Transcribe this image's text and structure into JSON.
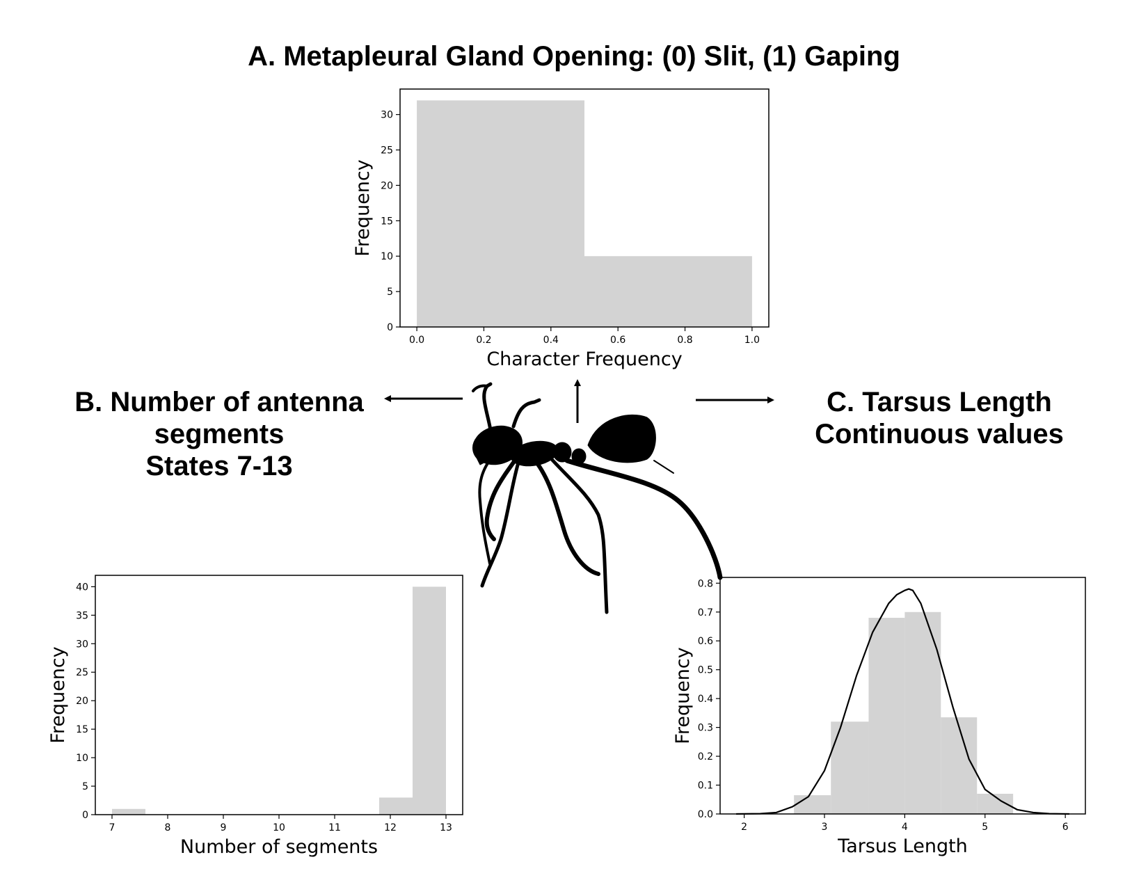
{
  "figure": {
    "panel_a_title": "A. Metapleural Gland Opening: (0) Slit, (1) Gaping",
    "panel_b_title": [
      "B. Number of antenna",
      "segments",
      "States 7-13"
    ],
    "panel_c_title": [
      "C. Tarsus Length",
      "Continuous values"
    ]
  },
  "colors": {
    "bar": "#d3d3d3",
    "axis": "#000000",
    "curve": "#000000",
    "silhouette": "#000000"
  },
  "icons": {
    "center": "ant-silhouette-icon"
  },
  "chart_data": [
    {
      "id": "A",
      "type": "bar",
      "xlabel": "Character Frequency",
      "ylabel": "Frequency",
      "xlim": [
        -0.05,
        1.05
      ],
      "ylim": [
        0,
        33.6
      ],
      "xticks": [
        0.0,
        0.2,
        0.4,
        0.6,
        0.8,
        1.0
      ],
      "xtick_labels": [
        "0.0",
        "0.2",
        "0.4",
        "0.6",
        "0.8",
        "1.0"
      ],
      "yticks": [
        0,
        5,
        10,
        15,
        20,
        25,
        30
      ],
      "bins": [
        {
          "x0": 0.0,
          "x1": 0.5,
          "value": 32
        },
        {
          "x0": 0.5,
          "x1": 1.0,
          "value": 10
        }
      ]
    },
    {
      "id": "B",
      "type": "bar",
      "xlabel": "Number of segments",
      "ylabel": "Frequency",
      "xlim": [
        6.7,
        13.3
      ],
      "ylim": [
        0,
        42
      ],
      "xticks": [
        7,
        8,
        9,
        10,
        11,
        12,
        13
      ],
      "xtick_labels": [
        "7",
        "8",
        "9",
        "10",
        "11",
        "12",
        "13"
      ],
      "yticks": [
        0,
        5,
        10,
        15,
        20,
        25,
        30,
        35,
        40
      ],
      "bins": [
        {
          "x0": 7.0,
          "x1": 7.6,
          "value": 1
        },
        {
          "x0": 11.8,
          "x1": 12.4,
          "value": 3
        },
        {
          "x0": 12.4,
          "x1": 13.0,
          "value": 40
        }
      ]
    },
    {
      "id": "C",
      "type": "bar",
      "xlabel": "Tarsus Length",
      "ylabel": "Frequency",
      "xlim": [
        1.7,
        6.25
      ],
      "ylim": [
        0,
        0.82
      ],
      "xticks": [
        2,
        3,
        4,
        5,
        6
      ],
      "xtick_labels": [
        "2",
        "3",
        "4",
        "5",
        "6"
      ],
      "yticks": [
        0.0,
        0.1,
        0.2,
        0.3,
        0.4,
        0.5,
        0.6,
        0.7,
        0.8
      ],
      "ytick_labels": [
        "0.0",
        "0.1",
        "0.2",
        "0.3",
        "0.4",
        "0.5",
        "0.6",
        "0.7",
        "0.8"
      ],
      "bins": [
        {
          "x0": 2.62,
          "x1": 3.08,
          "value": 0.065
        },
        {
          "x0": 3.08,
          "x1": 3.55,
          "value": 0.32
        },
        {
          "x0": 3.55,
          "x1": 4.0,
          "value": 0.68
        },
        {
          "x0": 4.0,
          "x1": 4.45,
          "value": 0.7
        },
        {
          "x0": 4.45,
          "x1": 4.9,
          "value": 0.335
        },
        {
          "x0": 4.9,
          "x1": 5.35,
          "value": 0.07
        }
      ],
      "density_curve": {
        "x": [
          1.9,
          2.2,
          2.4,
          2.6,
          2.8,
          3.0,
          3.2,
          3.4,
          3.6,
          3.8,
          3.9,
          4.0,
          4.05,
          4.1,
          4.2,
          4.4,
          4.6,
          4.8,
          5.0,
          5.2,
          5.4,
          5.6,
          5.8,
          6.05
        ],
        "y": [
          0.0,
          0.001,
          0.005,
          0.025,
          0.06,
          0.15,
          0.3,
          0.48,
          0.63,
          0.73,
          0.76,
          0.775,
          0.78,
          0.775,
          0.73,
          0.57,
          0.37,
          0.19,
          0.085,
          0.045,
          0.015,
          0.005,
          0.001,
          0.0
        ]
      }
    }
  ]
}
